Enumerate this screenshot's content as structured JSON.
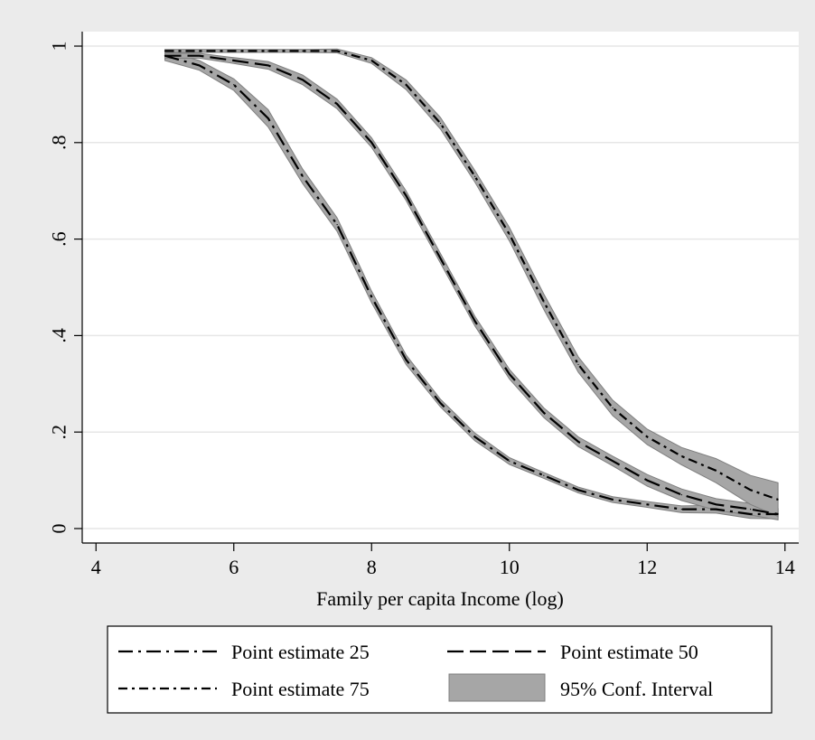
{
  "chart_data": {
    "type": "line",
    "xlabel": "Family per capita Income (log)",
    "ylabel": "",
    "xlim": [
      3.8,
      14.2
    ],
    "ylim": [
      -0.03,
      1.03
    ],
    "x_ticks": [
      4,
      6,
      8,
      10,
      12,
      14
    ],
    "x_tick_labels": [
      "4",
      "6",
      "8",
      "10",
      "12",
      "14"
    ],
    "y_ticks": [
      0,
      0.2,
      0.4,
      0.6,
      0.8,
      1
    ],
    "y_tick_labels": [
      "0",
      ".2",
      ".4",
      ".6",
      ".8",
      "1"
    ],
    "grid": "horizontal",
    "legend_position": "bottom",
    "colors": {
      "line": "#000000",
      "band": "#a6a6a6",
      "band_edge": "#7f7f7f",
      "plot_bg": "#ffffff",
      "outer_bg": "#ebebeb",
      "grid": "#e6e6e6"
    },
    "series": [
      {
        "name": "Point estimate 25",
        "style": "long-dash-dot",
        "x": [
          5.0,
          5.5,
          6.0,
          6.5,
          7.0,
          7.5,
          8.0,
          8.5,
          9.0,
          9.5,
          10.0,
          10.5,
          11.0,
          11.5,
          12.0,
          12.5,
          13.0,
          13.5,
          13.9
        ],
        "y": [
          0.98,
          0.96,
          0.92,
          0.85,
          0.73,
          0.63,
          0.48,
          0.35,
          0.26,
          0.19,
          0.14,
          0.11,
          0.08,
          0.06,
          0.05,
          0.04,
          0.04,
          0.03,
          0.03
        ],
        "ci_half_width": [
          0.01,
          0.01,
          0.012,
          0.018,
          0.015,
          0.014,
          0.012,
          0.01,
          0.008,
          0.008,
          0.007,
          0.006,
          0.006,
          0.006,
          0.006,
          0.007,
          0.008,
          0.009,
          0.01
        ]
      },
      {
        "name": "Point estimate 50",
        "style": "long-dash",
        "x": [
          5.0,
          5.5,
          6.0,
          6.5,
          7.0,
          7.5,
          8.0,
          8.5,
          9.0,
          9.5,
          10.0,
          10.5,
          11.0,
          11.5,
          12.0,
          12.5,
          13.0,
          13.5,
          13.9
        ],
        "y": [
          0.98,
          0.98,
          0.97,
          0.96,
          0.93,
          0.88,
          0.8,
          0.69,
          0.56,
          0.43,
          0.32,
          0.24,
          0.18,
          0.14,
          0.1,
          0.07,
          0.05,
          0.04,
          0.03
        ],
        "ci_half_width": [
          0.005,
          0.005,
          0.006,
          0.008,
          0.01,
          0.01,
          0.01,
          0.01,
          0.01,
          0.01,
          0.01,
          0.01,
          0.01,
          0.01,
          0.012,
          0.012,
          0.012,
          0.012,
          0.012
        ]
      },
      {
        "name": "Point estimate 75",
        "style": "dash-dot",
        "x": [
          5.0,
          5.5,
          6.0,
          6.5,
          7.0,
          7.5,
          8.0,
          8.5,
          9.0,
          9.5,
          10.0,
          10.5,
          11.0,
          11.5,
          12.0,
          12.5,
          13.0,
          13.5,
          13.9
        ],
        "y": [
          0.99,
          0.99,
          0.99,
          0.99,
          0.99,
          0.99,
          0.97,
          0.92,
          0.84,
          0.73,
          0.61,
          0.47,
          0.34,
          0.25,
          0.19,
          0.15,
          0.12,
          0.08,
          0.06
        ],
        "ci_half_width": [
          0.003,
          0.003,
          0.003,
          0.003,
          0.003,
          0.004,
          0.006,
          0.01,
          0.012,
          0.012,
          0.014,
          0.016,
          0.016,
          0.016,
          0.016,
          0.018,
          0.025,
          0.03,
          0.035
        ]
      }
    ],
    "legend": {
      "entries": [
        {
          "label": "Point estimate 25",
          "style": "long-dash-dot"
        },
        {
          "label": "Point estimate 50",
          "style": "long-dash"
        },
        {
          "label": "Point estimate 75",
          "style": "dash-dot"
        },
        {
          "label": "95% Conf. Interval",
          "style": "band"
        }
      ]
    }
  }
}
